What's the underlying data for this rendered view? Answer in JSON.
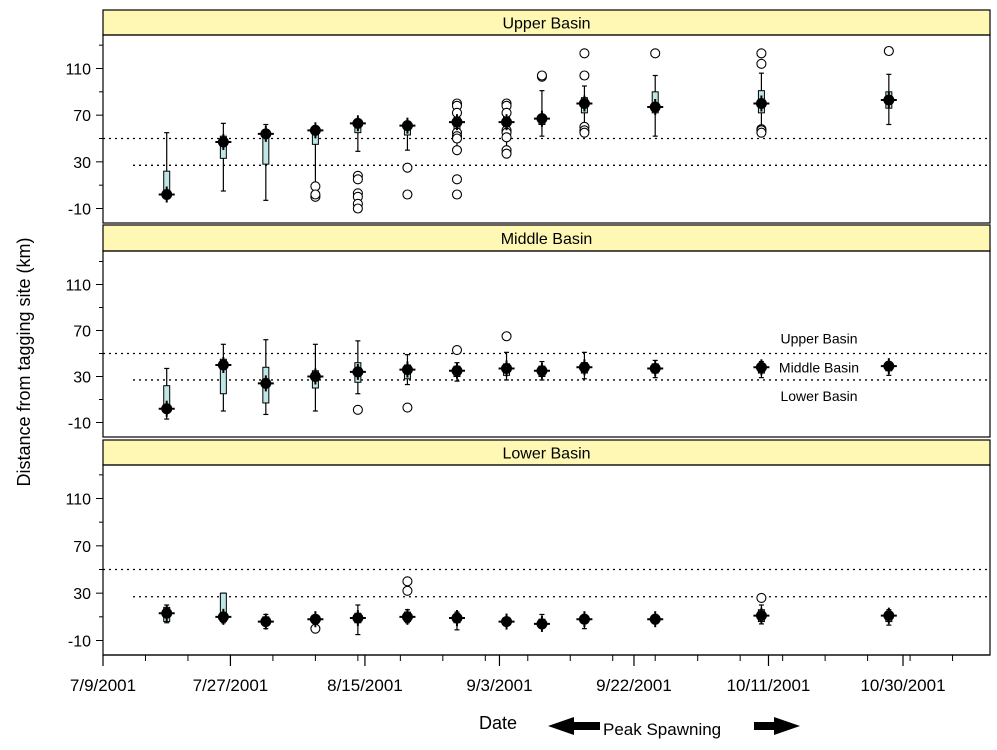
{
  "figure": {
    "y_axis_label": "Distance from tagging site (km)",
    "x_axis_label": "Date",
    "annotation": "Peak Spawning",
    "colors": {
      "panel_header": "#FFF8B4",
      "box_fill": "#BFE6E6",
      "marker": "#000000"
    }
  },
  "chart_data": {
    "type": "box",
    "x_ticks": [
      "7/9/2001",
      "7/27/2001",
      "8/15/2001",
      "9/3/2001",
      "9/22/2001",
      "10/11/2001",
      "10/30/2001"
    ],
    "y_ticks": [
      -10,
      30,
      70,
      110
    ],
    "ylim": [
      -20,
      140
    ],
    "grid": false,
    "legend_position": "middle-right of Middle Basin panel",
    "legend_entries": [
      "Upper Basin",
      "Middle Basin",
      "Lower Basin"
    ],
    "boundaries": {
      "upper_middle_km": 50,
      "middle_lower_km": 27
    },
    "panels": [
      {
        "title": "Upper Basin",
        "groups": [
          {
            "date": "7/18/2001",
            "mean": 2,
            "q1": 0,
            "q3": 22,
            "low": -1,
            "high": 55,
            "outliers": []
          },
          {
            "date": "7/26/2001",
            "mean": 47,
            "q1": 33,
            "q3": 52,
            "low": 5,
            "high": 63,
            "outliers": []
          },
          {
            "date": "8/1/2001",
            "mean": 54,
            "q1": 28,
            "q3": 57,
            "low": -3,
            "high": 62,
            "outliers": []
          },
          {
            "date": "8/8/2001",
            "mean": 57,
            "q1": 45,
            "q3": 60,
            "low": 0,
            "high": 61,
            "outliers": [
              0,
              9,
              2
            ]
          },
          {
            "date": "8/14/2001",
            "mean": 63,
            "q1": 55,
            "q3": 63,
            "low": 39,
            "high": 65,
            "outliers": [
              18,
              15,
              3,
              0,
              -6,
              -10
            ]
          },
          {
            "date": "8/21/2001",
            "mean": 61,
            "q1": 53,
            "q3": 63,
            "low": 40,
            "high": 63,
            "outliers": [
              25,
              2
            ]
          },
          {
            "date": "8/28/2001",
            "mean": 64,
            "q1": 57,
            "q3": 68,
            "low": 40,
            "high": 72,
            "outliers": [
              80,
              78,
              72,
              55,
              52,
              50,
              40,
              15,
              2
            ]
          },
          {
            "date": "9/4/2001",
            "mean": 64,
            "q1": 57,
            "q3": 70,
            "low": 42,
            "high": 73,
            "outliers": [
              80,
              78,
              72,
              57,
              55,
              51,
              40,
              37
            ]
          },
          {
            "date": "9/9/2001",
            "mean": 67,
            "q1": 62,
            "q3": 70,
            "low": 52,
            "high": 91,
            "outliers": [
              103,
              104
            ]
          },
          {
            "date": "9/15/2001",
            "mean": 80,
            "q1": 72,
            "q3": 85,
            "low": 55,
            "high": 95,
            "outliers": [
              123,
              104,
              60,
              57,
              55
            ]
          },
          {
            "date": "9/25/2001",
            "mean": 77,
            "q1": 72,
            "q3": 90,
            "low": 52,
            "high": 104,
            "outliers": [
              123
            ]
          },
          {
            "date": "10/10/2001",
            "mean": 80,
            "q1": 72,
            "q3": 91,
            "low": 53,
            "high": 106,
            "outliers": [
              123,
              114,
              58,
              57,
              55
            ]
          },
          {
            "date": "10/28/2001",
            "mean": 83,
            "q1": 76,
            "q3": 90,
            "low": 62,
            "high": 105,
            "outliers": [
              125
            ]
          }
        ]
      },
      {
        "title": "Middle Basin",
        "groups": [
          {
            "date": "7/18/2001",
            "mean": 2,
            "q1": 0,
            "q3": 22,
            "low": -7,
            "high": 37,
            "outliers": []
          },
          {
            "date": "7/26/2001",
            "mean": 40,
            "q1": 15,
            "q3": 45,
            "low": 0,
            "high": 58,
            "outliers": []
          },
          {
            "date": "8/1/2001",
            "mean": 24,
            "q1": 7,
            "q3": 38,
            "low": -3,
            "high": 62,
            "outliers": []
          },
          {
            "date": "8/8/2001",
            "mean": 30,
            "q1": 20,
            "q3": 35,
            "low": 0,
            "high": 58,
            "outliers": []
          },
          {
            "date": "8/14/2001",
            "mean": 34,
            "q1": 25,
            "q3": 42,
            "low": 15,
            "high": 61,
            "outliers": [
              1
            ]
          },
          {
            "date": "8/21/2001",
            "mean": 36,
            "q1": 28,
            "q3": 40,
            "low": 23,
            "high": 49,
            "outliers": [
              3
            ]
          },
          {
            "date": "8/28/2001",
            "mean": 35,
            "q1": 30,
            "q3": 39,
            "low": 26,
            "high": 42,
            "outliers": [
              53
            ]
          },
          {
            "date": "9/4/2001",
            "mean": 37,
            "q1": 31,
            "q3": 41,
            "low": 27,
            "high": 51,
            "outliers": [
              65
            ]
          },
          {
            "date": "9/9/2001",
            "mean": 35,
            "q1": 30,
            "q3": 39,
            "low": 27,
            "high": 43,
            "outliers": []
          },
          {
            "date": "9/15/2001",
            "mean": 38,
            "q1": 33,
            "q3": 42,
            "low": 28,
            "high": 51,
            "outliers": []
          },
          {
            "date": "9/25/2001",
            "mean": 37,
            "q1": 33,
            "q3": 41,
            "low": 29,
            "high": 44,
            "outliers": []
          },
          {
            "date": "10/10/2001",
            "mean": 38,
            "q1": 33,
            "q3": 41,
            "low": 29,
            "high": 43,
            "outliers": []
          },
          {
            "date": "10/28/2001",
            "mean": 39,
            "q1": 35,
            "q3": 41,
            "low": 31,
            "high": 43,
            "outliers": []
          }
        ]
      },
      {
        "title": "Lower Basin",
        "groups": [
          {
            "date": "7/18/2001",
            "mean": 13,
            "q1": 6,
            "q3": 18,
            "low": 5,
            "high": 20,
            "outliers": []
          },
          {
            "date": "7/26/2001",
            "mean": 10,
            "q1": 6,
            "q3": 30,
            "low": 5,
            "high": 30,
            "outliers": []
          },
          {
            "date": "8/1/2001",
            "mean": 6,
            "q1": 3,
            "q3": 10,
            "low": 0,
            "high": 12,
            "outliers": []
          },
          {
            "date": "8/8/2001",
            "mean": 8,
            "q1": 5,
            "q3": 10,
            "low": 4,
            "high": 11,
            "outliers": [
              0
            ]
          },
          {
            "date": "8/14/2001",
            "mean": 9,
            "q1": 5,
            "q3": 13,
            "low": -5,
            "high": 20,
            "outliers": []
          },
          {
            "date": "8/21/2001",
            "mean": 10,
            "q1": 6,
            "q3": 14,
            "low": 5,
            "high": 16,
            "outliers": [
              40,
              32
            ]
          },
          {
            "date": "8/28/2001",
            "mean": 9,
            "q1": 5,
            "q3": 12,
            "low": -1,
            "high": 14,
            "outliers": []
          },
          {
            "date": "9/4/2001",
            "mean": 6,
            "q1": 4,
            "q3": 8,
            "low": 3,
            "high": 9,
            "outliers": []
          },
          {
            "date": "9/9/2001",
            "mean": 4,
            "q1": 2,
            "q3": 8,
            "low": 1,
            "high": 12,
            "outliers": []
          },
          {
            "date": "9/15/2001",
            "mean": 8,
            "q1": 5,
            "q3": 10,
            "low": 0,
            "high": 12,
            "outliers": []
          },
          {
            "date": "9/25/2001",
            "mean": 8,
            "q1": 5,
            "q3": 11,
            "low": 4,
            "high": 12,
            "outliers": []
          },
          {
            "date": "10/10/2001",
            "mean": 11,
            "q1": 6,
            "q3": 16,
            "low": 4,
            "high": 20,
            "outliers": [
              26
            ]
          },
          {
            "date": "10/28/2001",
            "mean": 11,
            "q1": 6,
            "q3": 14,
            "low": 3,
            "high": 16,
            "outliers": []
          }
        ]
      }
    ]
  }
}
